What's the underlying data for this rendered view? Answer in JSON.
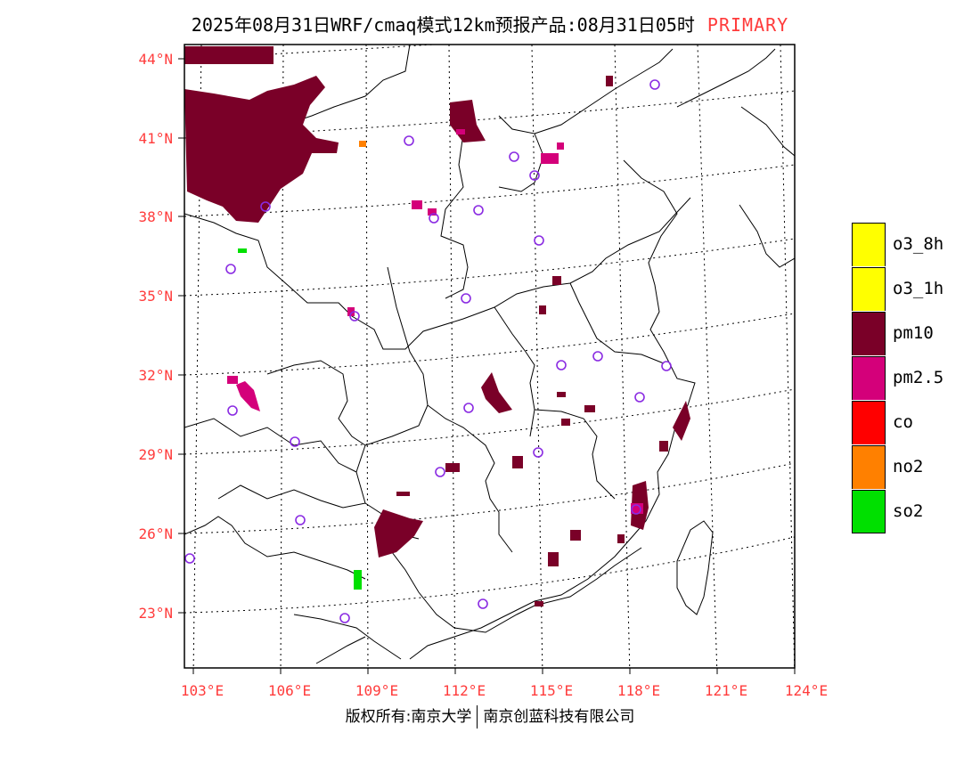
{
  "header": {
    "title": "2025年08月31日WRF/cmaq模式12km预报产品:08月31日05时",
    "pollutant_tag": "PRIMARY"
  },
  "footer": {
    "left": "版权所有:南京大学",
    "right": "南京创蓝科技有限公司"
  },
  "map": {
    "lat_ticks": [
      "44°N",
      "41°N",
      "38°N",
      "35°N",
      "32°N",
      "29°N",
      "26°N",
      "23°N"
    ],
    "lon_ticks": [
      "103°E",
      "106°E",
      "109°E",
      "112°E",
      "115°E",
      "118°E",
      "121°E",
      "124°E"
    ],
    "stations_marker": "circle-outline-violet"
  },
  "legend": {
    "items": [
      {
        "label": "o3_8h",
        "color": "#ffff00"
      },
      {
        "label": "o3_1h",
        "color": "#ffff00"
      },
      {
        "label": "pm10",
        "color": "#7a0028"
      },
      {
        "label": "pm2.5",
        "color": "#d4007a"
      },
      {
        "label": "co",
        "color": "#ff0000"
      },
      {
        "label": "no2",
        "color": "#ff8000"
      },
      {
        "label": "so2",
        "color": "#00e000"
      }
    ]
  },
  "colors": {
    "pm10": "#7a0028",
    "pm25": "#d4007a",
    "no2": "#ff8000",
    "so2": "#00e000",
    "station": "#8a2be2",
    "tick": "#ff3b3b"
  }
}
